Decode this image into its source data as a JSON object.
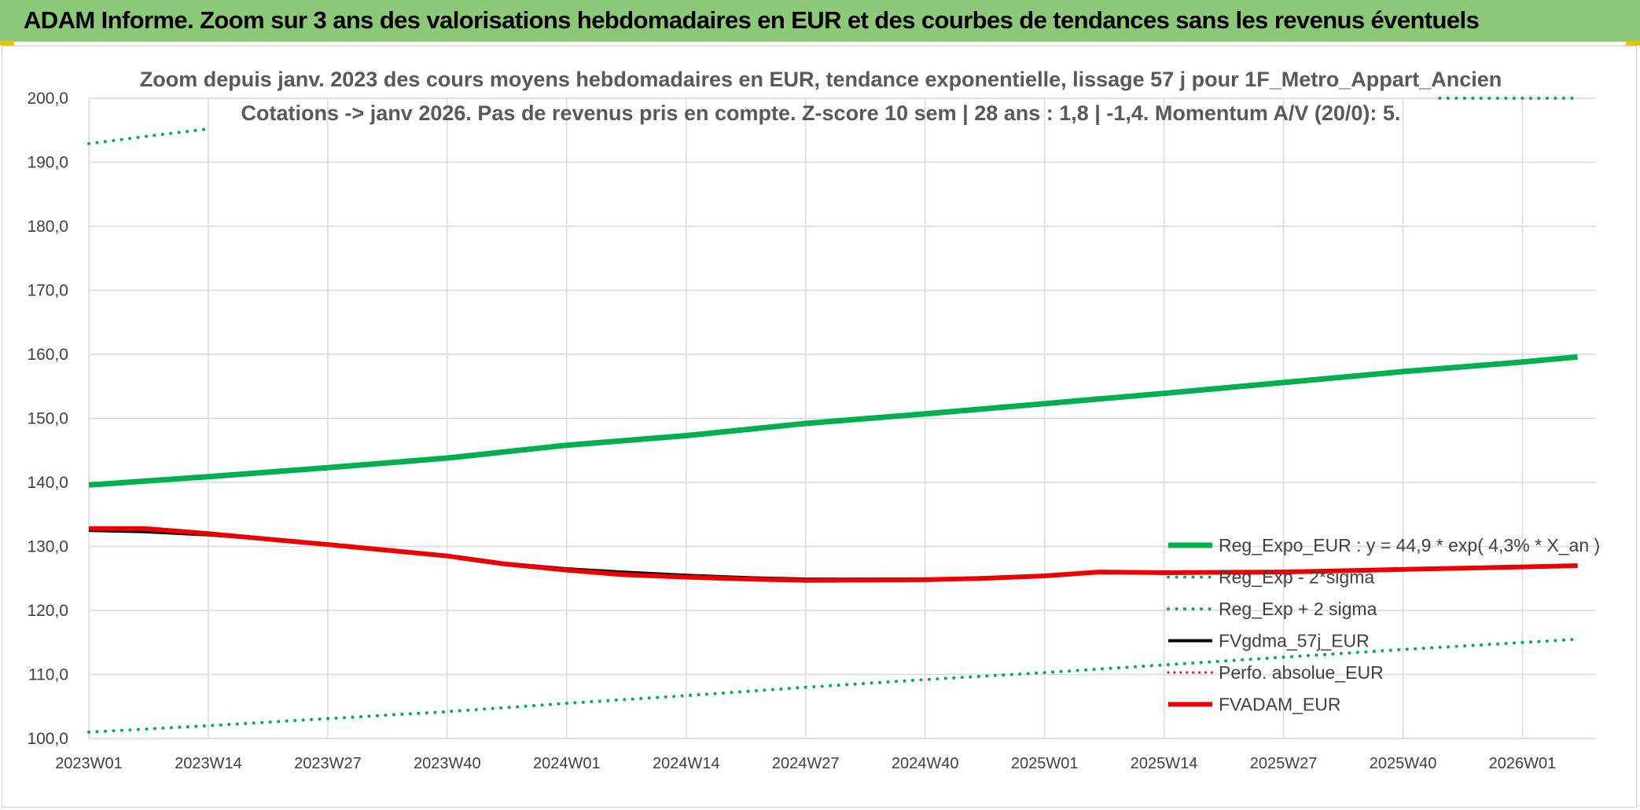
{
  "header": {
    "title": "ADAM Informe. Zoom sur 3 ans des valorisations hebdomadaires en EUR et des courbes de tendances sans les revenus éventuels"
  },
  "chart_data": {
    "type": "line",
    "title_line1": "Zoom depuis janv. 2023 des cours moyens hebdomadaires en EUR, tendance exponentielle, lissage 57 j pour 1F_Metro_Appart_Ancien",
    "title_line2": "Cotations -> janv 2026. Pas de revenus pris en compte. Z-score 10 sem | 28 ans : 1,8 | -1,4. Momentum A/V (20/0): 5.",
    "x_tick_labels": [
      "2023W01",
      "2023W14",
      "2023W27",
      "2023W40",
      "2024W01",
      "2024W14",
      "2024W27",
      "2024W40",
      "2025W01",
      "2025W14",
      "2025W27",
      "2025W40",
      "2026W01"
    ],
    "x_range": [
      0,
      164
    ],
    "ylim": [
      100,
      200
    ],
    "y_tick_labels": [
      "100,0",
      "110,0",
      "120,0",
      "130,0",
      "140,0",
      "150,0",
      "160,0",
      "170,0",
      "180,0",
      "190,0",
      "200,0"
    ],
    "grid": true,
    "legend_position": "bottom-right",
    "series": [
      {
        "name": "Reg_Expo_EUR : y = 44,9 * exp( 4,3% *  X_an )",
        "color": "#00b050",
        "style": "solid",
        "width": 7,
        "x": [
          0,
          13,
          26,
          39,
          52,
          65,
          78,
          91,
          104,
          117,
          130,
          143,
          156,
          162
        ],
        "values": [
          139.6,
          140.9,
          142.3,
          143.8,
          145.8,
          147.3,
          149.2,
          150.7,
          152.3,
          153.9,
          155.6,
          157.3,
          158.8,
          159.6
        ]
      },
      {
        "name": "Reg_Exp - 2*sigma",
        "color": "#00b050",
        "style": "dotted",
        "width": 4,
        "x": [
          0,
          13,
          26,
          39,
          52,
          65,
          78,
          91,
          104,
          117,
          130,
          143,
          156,
          162
        ],
        "values": [
          101.0,
          102.0,
          103.1,
          104.2,
          105.5,
          106.7,
          108.0,
          109.2,
          110.3,
          111.5,
          112.7,
          113.9,
          115.0,
          115.5
        ]
      },
      {
        "name": "Reg_Exp + 2 sigma",
        "color": "#00b050",
        "style": "dotted",
        "width": 4,
        "segments": [
          {
            "x": [
              0,
              6,
              13
            ],
            "values": [
              192.9,
              194.0,
              195.2
            ]
          },
          {
            "x": [
              147,
              162
            ],
            "values": [
              200.0,
              200.0
            ]
          }
        ]
      },
      {
        "name": "FVgdma_57j_EUR",
        "color": "#000000",
        "style": "solid",
        "width": 4,
        "x": [
          0,
          6,
          13,
          26,
          39,
          45,
          52,
          58,
          65,
          72,
          78,
          91,
          97,
          104,
          110,
          117,
          130,
          143,
          156,
          162
        ],
        "values": [
          132.5,
          132.3,
          131.8,
          130.4,
          128.6,
          127.4,
          126.5,
          126.0,
          125.5,
          125.1,
          124.9,
          124.9,
          125.0,
          125.5,
          126.0,
          125.8,
          125.9,
          126.4,
          126.8,
          127.0
        ]
      },
      {
        "name": "Perfo. absolue_EUR",
        "color": "#ff0000",
        "style": "dotted",
        "width": 3,
        "x": [],
        "values": []
      },
      {
        "name": "FVADAM_EUR",
        "color": "#ee0000",
        "style": "solid",
        "width": 6,
        "x": [
          0,
          6,
          13,
          19,
          26,
          39,
          45,
          52,
          58,
          65,
          72,
          78,
          91,
          97,
          104,
          110,
          117,
          130,
          143,
          156,
          162
        ],
        "values": [
          132.8,
          132.8,
          132.0,
          131.2,
          130.3,
          128.5,
          127.3,
          126.3,
          125.6,
          125.2,
          124.9,
          124.7,
          124.8,
          125.0,
          125.4,
          126.0,
          125.9,
          126.0,
          126.4,
          126.8,
          127.0
        ]
      }
    ]
  }
}
